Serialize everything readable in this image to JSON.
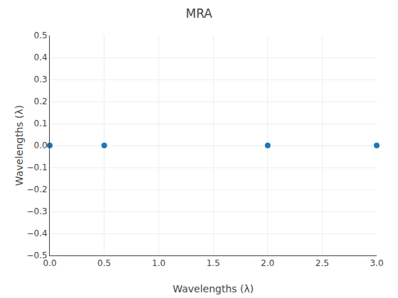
{
  "chart_data": {
    "type": "scatter",
    "title": "MRA",
    "xlabel": "Wavelengths (λ)",
    "ylabel": "Wavelengths (λ)",
    "x": [
      0,
      0.5,
      2,
      3
    ],
    "values": [
      0,
      0,
      0,
      0
    ],
    "color": "#1f77b4",
    "xlim": [
      0,
      3
    ],
    "ylim": [
      -0.5,
      0.5
    ],
    "xticks": [
      {
        "value": 0,
        "label": "0.0"
      },
      0.5,
      {
        "value": 1,
        "label": "1.0"
      },
      1.5,
      {
        "value": 2,
        "label": "2.0"
      },
      2.5,
      {
        "value": 3,
        "label": "3.0"
      }
    ],
    "yticks": [
      {
        "value": -0.5,
        "label": "−0.5"
      },
      {
        "value": -0.4,
        "label": "−0.4"
      },
      {
        "value": -0.3,
        "label": "−0.3"
      },
      {
        "value": -0.2,
        "label": "−0.2"
      },
      {
        "value": -0.1,
        "label": "−0.1"
      },
      {
        "value": 0,
        "label": "0.0"
      },
      0.1,
      0.2,
      0.3,
      0.4,
      0.5
    ],
    "grid": true
  }
}
